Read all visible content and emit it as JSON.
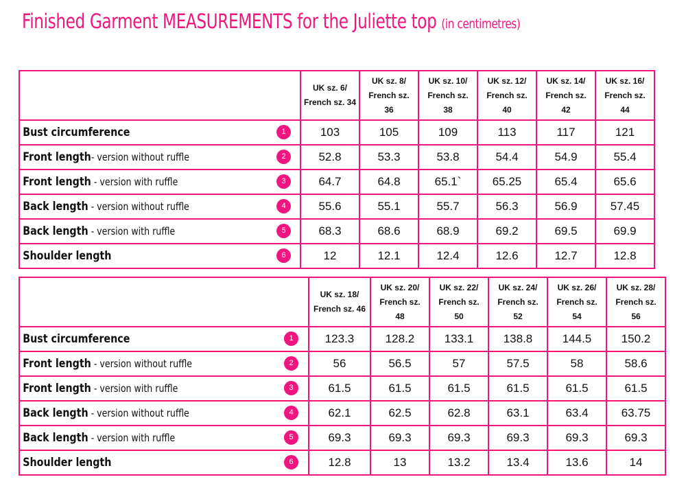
{
  "title": {
    "main": "Finished Garment MEASUREMENTS for the Juliette top",
    "sub": "(in centimetres)"
  },
  "colors": {
    "accent": "#f0157f"
  },
  "tables": [
    {
      "sizes": [
        [
          "UK sz. 6/",
          "French sz. 34"
        ],
        [
          "UK sz. 8/",
          "French sz.",
          "36"
        ],
        [
          "UK sz. 10/",
          "French sz.",
          "38"
        ],
        [
          "UK sz. 12/",
          "French sz.",
          "40"
        ],
        [
          "UK sz. 14/",
          "French sz.",
          "42"
        ],
        [
          "UK sz. 16/",
          "French sz.",
          "44"
        ]
      ],
      "rows": [
        {
          "main": "Bust circumference",
          "sub": "",
          "num": "1",
          "values": [
            "103",
            "105",
            "109",
            "113",
            "117",
            "121"
          ]
        },
        {
          "main": "Front length",
          "sub": "- version without ruffle",
          "num": "2",
          "values": [
            "52.8",
            "53.3",
            "53.8",
            "54.4",
            "54.9",
            "55.4"
          ]
        },
        {
          "main": "Front length",
          "sub": " - version with ruffle",
          "num": "3",
          "values": [
            "64.7",
            "64.8",
            "65.1`",
            "65.25",
            "65.4",
            "65.6"
          ]
        },
        {
          "main": "Back length",
          "sub": " - version without ruffle",
          "num": "4",
          "values": [
            "55.6",
            "55.1",
            "55.7",
            "56.3",
            "56.9",
            "57.45"
          ]
        },
        {
          "main": "Back length",
          "sub": " - version with ruffle",
          "num": "5",
          "values": [
            "68.3",
            "68.6",
            "68.9",
            "69.2",
            "69.5",
            "69.9"
          ]
        },
        {
          "main": "Shoulder length",
          "sub": "",
          "num": "6",
          "values": [
            "12",
            "12.1",
            "12.4",
            "12.6",
            "12.7",
            "12.8"
          ]
        }
      ]
    },
    {
      "sizes": [
        [
          "UK sz. 18/",
          "French sz. 46"
        ],
        [
          "UK sz. 20/",
          "French sz.",
          "48"
        ],
        [
          "UK sz. 22/",
          "French sz.",
          "50"
        ],
        [
          "UK sz. 24/",
          "French sz.",
          "52"
        ],
        [
          "UK sz. 26/",
          "French sz.",
          "54"
        ],
        [
          "UK sz. 28/",
          "French sz.",
          "56"
        ]
      ],
      "rows": [
        {
          "main": "Bust circumference",
          "sub": "",
          "num": "1",
          "values": [
            "123.3",
            "128.2",
            "133.1",
            "138.8",
            "144.5",
            "150.2"
          ]
        },
        {
          "main": "Front length",
          "sub": " - version without ruffle",
          "num": "2",
          "values": [
            "56",
            "56.5",
            "57",
            "57.5",
            "58",
            "58.6"
          ]
        },
        {
          "main": "Front length",
          "sub": " - version with ruffle",
          "num": "3",
          "values": [
            "61.5",
            "61.5",
            "61.5",
            "61.5",
            "61.5",
            "61.5"
          ]
        },
        {
          "main": "Back length",
          "sub": " - version without ruffle",
          "num": "4",
          "values": [
            "62.1",
            "62.5",
            "62.8",
            "63.1",
            "63.4",
            "63.75"
          ]
        },
        {
          "main": "Back length",
          "sub": " - version with ruffle",
          "num": "5",
          "values": [
            "69.3",
            "69.3",
            "69.3",
            "69.3",
            "69.3",
            "69.3"
          ]
        },
        {
          "main": "Shoulder length",
          "sub": "",
          "num": "6",
          "values": [
            "12.8",
            "13",
            "13.2",
            "13.4",
            "13.6",
            "14"
          ]
        }
      ]
    }
  ]
}
